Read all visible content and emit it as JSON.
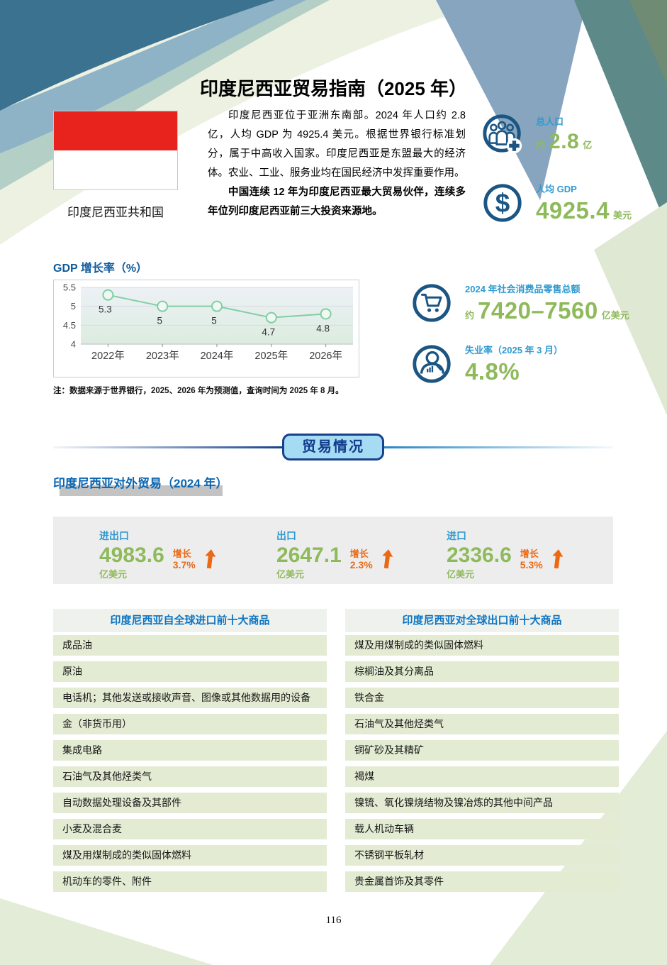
{
  "header": {
    "title": "印度尼西亚贸易指南（2025 年）",
    "flag_label": "印度尼西亚共和国"
  },
  "intro": {
    "para1": "印度尼西亚位于亚洲东南部。2024 年人口约 2.8 亿，人均 GDP 为 4925.4 美元。根据世界银行标准划分，属于中高收入国家。印度尼西亚是东盟最大的经济体。农业、工业、服务业均在国民经济中发挥重要作用。",
    "para2": "中国连续 12 年为印度尼西亚最大贸易伙伴，连续多年位列印度尼西亚前三大投资来源地。"
  },
  "key_stats": {
    "population": {
      "label": "总人口",
      "prefix": "约",
      "value": "2.8",
      "unit": "亿"
    },
    "gdp_per_capita": {
      "label": "人均 GDP",
      "value": "4925.4",
      "unit": "美元"
    },
    "retail": {
      "label": "2024 年社会消费品零售总额",
      "prefix": "约",
      "value": "7420–7560",
      "unit": "亿美元"
    },
    "unemployment": {
      "label": "失业率（2025 年 3 月）",
      "value": "4.8%"
    }
  },
  "chart_data": {
    "type": "line",
    "title": "GDP 增长率（%）",
    "categories": [
      "2022年",
      "2023年",
      "2024年",
      "2025年",
      "2026年"
    ],
    "values": [
      5.3,
      5,
      5,
      4.7,
      4.8
    ],
    "point_labels": [
      "5.3",
      "5",
      "5",
      "4.7",
      "4.8"
    ],
    "ylim": [
      4,
      5.5
    ],
    "yticks": [
      5.5,
      5,
      4.5,
      4
    ],
    "grid": true,
    "legend": "none",
    "line_color": "#82cda4",
    "note": "注：数据来源于世界银行，2025、2026 年为预测值，查询时间为 2025 年 8 月。"
  },
  "trade": {
    "badge": "贸易情况",
    "heading": "印度尼西亚对外贸易（2024 年）",
    "stats": [
      {
        "label": "进出口",
        "value": "4983.6",
        "unit": "亿美元",
        "growth_label": "增长",
        "growth": "3.7%"
      },
      {
        "label": "出口",
        "value": "2647.1",
        "unit": "亿美元",
        "growth_label": "增长",
        "growth": "2.3%"
      },
      {
        "label": "进口",
        "value": "2336.6",
        "unit": "亿美元",
        "growth_label": "增长",
        "growth": "5.3%"
      }
    ]
  },
  "tables": {
    "imports": {
      "header": "印度尼西亚自全球进口前十大商品",
      "rows": [
        "成品油",
        "原油",
        "电话机；其他发送或接收声音、图像或其他数据用的设备",
        "金（非货币用）",
        "集成电路",
        "石油气及其他烃类气",
        "自动数据处理设备及其部件",
        "小麦及混合麦",
        "煤及用煤制成的类似固体燃料",
        "机动车的零件、附件"
      ]
    },
    "exports": {
      "header": "印度尼西亚对全球出口前十大商品",
      "rows": [
        "煤及用煤制成的类似固体燃料",
        "棕榈油及其分离品",
        "铁合金",
        "石油气及其他烃类气",
        "铜矿砂及其精矿",
        "褐煤",
        "镍锍、氧化镍烧结物及镍冶炼的其他中间产品",
        "载人机动车辆",
        "不锈钢平板轧材",
        "贵金属首饰及其零件"
      ]
    }
  },
  "footer": {
    "page_number": "116"
  },
  "colors": {
    "accent_blue": "#2f9ad0",
    "value_green": "#8fba5c",
    "icon_navy": "#1b5583",
    "heading_blue": "#0a66b1",
    "orange": "#eb6915",
    "badge_fill": "#a6dbf4",
    "badge_border": "#16418f",
    "table_row_green": "#e3ecd3"
  }
}
